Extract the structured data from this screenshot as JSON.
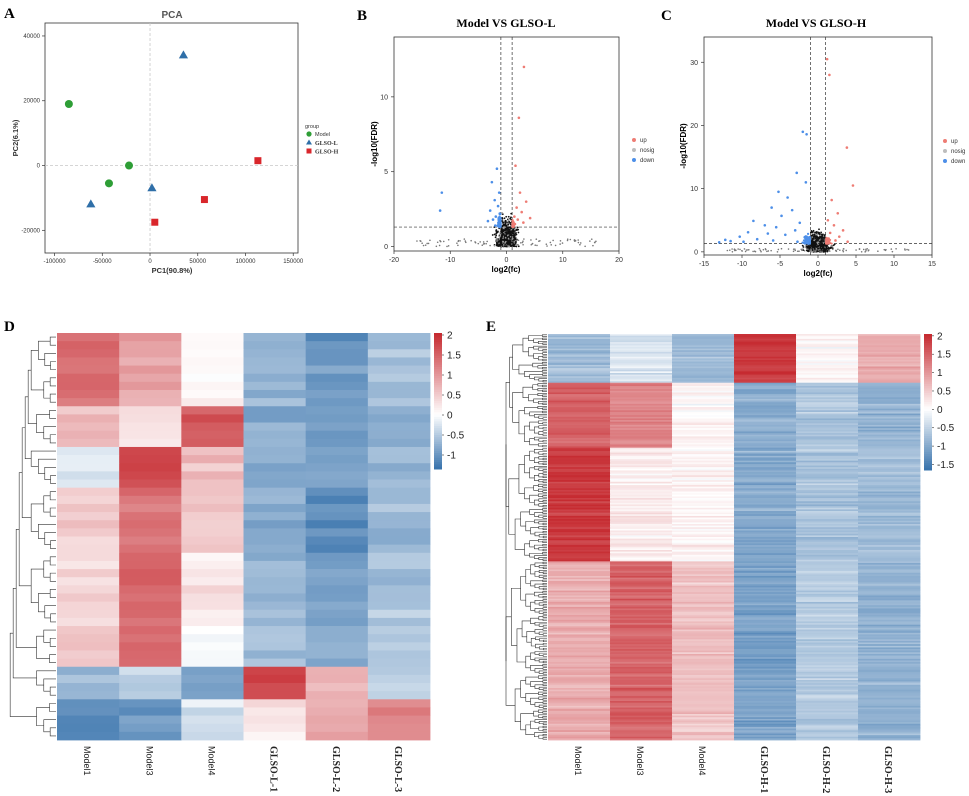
{
  "panel_letters": [
    "A",
    "B",
    "C",
    "D",
    "E"
  ],
  "colors": {
    "model": "#2e9e36",
    "glso_l": "#2f6fa8",
    "glso_h": "#d9262b",
    "up": "#ee7c74",
    "nosig": "#bdbdbd",
    "down": "#4d8fe8",
    "heat_low": "#3a74ad",
    "heat_mid": "#ffffff",
    "heat_high": "#c62b31"
  },
  "chart_data": [
    {
      "id": "A",
      "type": "scatter",
      "title": "PCA",
      "xlabel": "PC1(90.8%)",
      "ylabel": "PC2(6.1%)",
      "xlim": [
        -110000,
        155000
      ],
      "ylim": [
        -27000,
        44000
      ],
      "xticks": [
        -100000,
        -50000,
        0,
        50000,
        100000,
        150000
      ],
      "xtick_labels": [
        "-100000",
        "-50000",
        "0",
        "50000",
        "100000",
        "150000"
      ],
      "yticks": [
        -20000,
        0,
        20000,
        40000
      ],
      "ytick_labels": [
        "-20000",
        "0",
        "20000",
        "40000"
      ],
      "legend_title": "group",
      "series": [
        {
          "name": "Model",
          "marker": "circle",
          "points": [
            [
              -85000,
              19000
            ],
            [
              -22000,
              0
            ],
            [
              -43000,
              -5500
            ]
          ]
        },
        {
          "name": "GLSO-L",
          "marker": "triangle",
          "points": [
            [
              35000,
              34000
            ],
            [
              2000,
              -7000
            ],
            [
              -62000,
              -12000
            ]
          ]
        },
        {
          "name": "GLSO-H",
          "marker": "square",
          "points": [
            [
              113000,
              1500
            ],
            [
              57000,
              -10500
            ],
            [
              5000,
              -17500
            ]
          ]
        }
      ]
    },
    {
      "id": "B",
      "type": "scatter",
      "title": "Model VS GLSO-L",
      "xlabel": "log2(fc)",
      "ylabel": "-log10(FDR)",
      "xlim": [
        -20,
        20
      ],
      "ylim": [
        -0.3,
        14
      ],
      "xticks": [
        -20,
        -10,
        0,
        10,
        20
      ],
      "xtick_labels": [
        "-20",
        "-10",
        "0",
        "10",
        "20"
      ],
      "yticks": [
        0,
        5,
        10
      ],
      "ytick_labels": [
        "0",
        "5",
        "10"
      ],
      "vlines": [
        -1,
        1
      ],
      "hline": 1.3,
      "legend": [
        "up",
        "nosig",
        "down"
      ],
      "highlight_points": {
        "up": [
          [
            3.1,
            12.0
          ],
          [
            2.2,
            8.6
          ],
          [
            1.6,
            5.4
          ],
          [
            2.4,
            3.6
          ],
          [
            3.5,
            3.0
          ],
          [
            1.8,
            2.6
          ],
          [
            2.7,
            2.3
          ],
          [
            1.4,
            2.0
          ],
          [
            2.0,
            1.8
          ],
          [
            3.0,
            1.6
          ],
          [
            1.5,
            1.5
          ],
          [
            4.2,
            1.9
          ]
        ],
        "down": [
          [
            -11.5,
            3.6
          ],
          [
            -11.8,
            2.4
          ],
          [
            -1.7,
            5.2
          ],
          [
            -2.6,
            4.3
          ],
          [
            -1.3,
            3.6
          ],
          [
            -2.1,
            3.1
          ],
          [
            -1.5,
            2.7
          ],
          [
            -2.9,
            2.4
          ],
          [
            -1.2,
            2.2
          ],
          [
            -1.9,
            2.0
          ],
          [
            -2.4,
            1.8
          ],
          [
            -1.4,
            1.6
          ],
          [
            -3.3,
            1.7
          ],
          [
            -1.1,
            1.5
          ],
          [
            -2.0,
            1.4
          ]
        ]
      }
    },
    {
      "id": "C",
      "type": "scatter",
      "title": "Model VS GLSO-H",
      "xlabel": "log2(fc)",
      "ylabel": "-log10(FDR)",
      "xlim": [
        -15,
        15
      ],
      "ylim": [
        -0.5,
        34
      ],
      "xticks": [
        -15,
        -10,
        -5,
        0,
        5,
        10,
        15
      ],
      "xtick_labels": [
        "-15",
        "-10",
        "-5",
        "0",
        "5",
        "10",
        "15"
      ],
      "yticks": [
        0,
        10,
        20,
        30
      ],
      "ytick_labels": [
        "0",
        "10",
        "20",
        "30"
      ],
      "vlines": [
        -1,
        1
      ],
      "hline": 1.3,
      "legend": [
        "up",
        "nosig",
        "down"
      ],
      "highlight_points": {
        "up": [
          [
            1.2,
            30.5
          ],
          [
            1.5,
            28.0
          ],
          [
            3.8,
            16.5
          ],
          [
            4.6,
            10.5
          ],
          [
            1.8,
            8.2
          ],
          [
            2.6,
            6.1
          ],
          [
            1.3,
            5.0
          ],
          [
            2.1,
            4.2
          ],
          [
            3.3,
            3.4
          ],
          [
            1.6,
            3.0
          ],
          [
            2.8,
            2.4
          ],
          [
            1.4,
            2.1
          ],
          [
            2.3,
            1.8
          ],
          [
            3.9,
            1.6
          ],
          [
            1.2,
            1.5
          ]
        ],
        "down": [
          [
            -2.0,
            19.0
          ],
          [
            -1.5,
            18.6
          ],
          [
            -2.8,
            12.5
          ],
          [
            -1.6,
            11.0
          ],
          [
            -5.2,
            9.5
          ],
          [
            -4.0,
            8.6
          ],
          [
            -6.1,
            7.0
          ],
          [
            -3.4,
            6.6
          ],
          [
            -4.8,
            5.7
          ],
          [
            -8.5,
            4.9
          ],
          [
            -2.4,
            4.6
          ],
          [
            -7.0,
            4.2
          ],
          [
            -5.5,
            3.9
          ],
          [
            -9.2,
            3.1
          ],
          [
            -3.0,
            3.4
          ],
          [
            -6.6,
            2.9
          ],
          [
            -10.3,
            2.4
          ],
          [
            -4.3,
            2.7
          ],
          [
            -12.2,
            1.9
          ],
          [
            -8.0,
            2.0
          ],
          [
            -11.5,
            1.7
          ],
          [
            -1.3,
            2.2
          ],
          [
            -5.9,
            1.8
          ],
          [
            -2.7,
            1.6
          ],
          [
            -13.0,
            1.5
          ],
          [
            -9.8,
            1.6
          ]
        ]
      }
    },
    {
      "id": "D",
      "type": "heatmap",
      "columns": [
        "Model1",
        "Model3",
        "Model4",
        "GLSO-L-1",
        "GLSO-L-2",
        "GLSO-L-3"
      ],
      "n_rows": 50,
      "colorbar_range": [
        -1.35,
        2.05
      ],
      "colorbar_ticks": [
        2,
        1.5,
        1,
        0.5,
        0,
        -0.5,
        -1
      ],
      "colorbar_labels": [
        "2",
        "1.5",
        "1",
        "0.5",
        "0",
        "-0.5",
        "-1"
      ],
      "row_blocks": [
        {
          "rows": 9,
          "values": [
            1.4,
            0.9,
            0.1,
            -0.7,
            -1.0,
            -0.6
          ]
        },
        {
          "rows": 5,
          "values": [
            0.6,
            0.3,
            1.6,
            -0.8,
            -1.0,
            -0.8
          ]
        },
        {
          "rows": 5,
          "values": [
            -0.2,
            1.8,
            0.6,
            -0.8,
            -0.9,
            -0.7
          ]
        },
        {
          "rows": 8,
          "values": [
            0.5,
            1.3,
            0.5,
            -0.8,
            -1.1,
            -0.7
          ]
        },
        {
          "rows": 9,
          "values": [
            0.4,
            1.5,
            0.2,
            -0.7,
            -0.9,
            -0.6
          ]
        },
        {
          "rows": 5,
          "values": [
            0.6,
            1.4,
            -0.1,
            -0.6,
            -0.8,
            -0.5
          ]
        },
        {
          "rows": 4,
          "values": [
            -0.7,
            -0.5,
            -0.9,
            1.8,
            0.7,
            -0.4
          ]
        },
        {
          "rows": 5,
          "values": [
            -1.1,
            -1.0,
            -0.3,
            0.3,
            0.8,
            1.2
          ]
        }
      ]
    },
    {
      "id": "E",
      "type": "heatmap",
      "columns": [
        "Model1",
        "Model3",
        "Model4",
        "GLSO-H-1",
        "GLSO-H-2",
        "GLSO-H-3"
      ],
      "n_rows": 250,
      "colorbar_range": [
        -1.65,
        2.05
      ],
      "colorbar_ticks": [
        2,
        1.5,
        1,
        0.5,
        0,
        -0.5,
        -1,
        -1.5
      ],
      "colorbar_labels": [
        "2",
        "1.5",
        "1",
        "0.5",
        "0",
        "-0.5",
        "-1",
        "-1.5"
      ],
      "row_blocks": [
        {
          "rows": 30,
          "values": [
            -0.8,
            -0.3,
            -0.8,
            1.9,
            0.1,
            0.8
          ]
        },
        {
          "rows": 40,
          "values": [
            1.5,
            1.2,
            0.1,
            -1.0,
            -0.7,
            -0.9
          ]
        },
        {
          "rows": 70,
          "values": [
            1.9,
            0.2,
            0.1,
            -1.0,
            -0.7,
            -0.8
          ]
        },
        {
          "rows": 110,
          "values": [
            0.8,
            1.5,
            0.6,
            -1.1,
            -0.6,
            -0.9
          ]
        }
      ]
    }
  ]
}
